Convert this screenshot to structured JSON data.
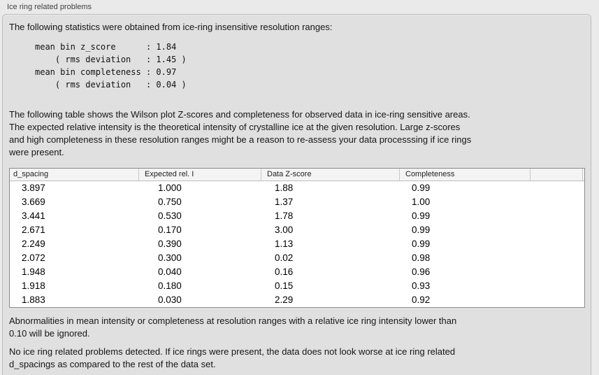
{
  "panel": {
    "title": "Ice ring related problems"
  },
  "intro": "The following statistics were obtained from ice-ring insensitive resolution ranges:",
  "stats_block": "mean bin z_score      : 1.84\n    ( rms deviation   : 1.45 )\nmean bin completeness : 0.97\n    ( rms deviation   : 0.04 )",
  "table_description": "The following table shows the Wilson plot Z-scores and completeness for observed data in ice-ring sensitive areas.\nThe expected relative intensity is the theoretical intensity of crystalline ice at the given resolution. Large z-scores\nand high completeness in these resolution ranges might be a reason to re-assess your data processsing if ice rings\nwere present.",
  "table": {
    "columns": [
      "d_spacing",
      "Expected rel. I",
      "Data Z-score",
      "Completeness",
      ""
    ],
    "rows": [
      [
        "3.897",
        "1.000",
        "1.88",
        "0.99"
      ],
      [
        "3.669",
        "0.750",
        "1.37",
        "1.00"
      ],
      [
        "3.441",
        "0.530",
        "1.78",
        "0.99"
      ],
      [
        "2.671",
        "0.170",
        "3.00",
        "0.99"
      ],
      [
        "2.249",
        "0.390",
        "1.13",
        "0.99"
      ],
      [
        "2.072",
        "0.300",
        "0.02",
        "0.98"
      ],
      [
        "1.948",
        "0.040",
        "0.16",
        "0.96"
      ],
      [
        "1.918",
        "0.180",
        "0.15",
        "0.93"
      ],
      [
        "1.883",
        "0.030",
        "2.29",
        "0.92"
      ]
    ]
  },
  "note_ignore": "Abnormalities in mean intensity or completeness at resolution ranges with a relative ice ring intensity lower than\n0.10 will be ignored.",
  "conclusion": "No ice ring related problems detected. If ice rings were present, the data does not look worse at ice ring related\nd_spacings as compared to the rest of the data set."
}
